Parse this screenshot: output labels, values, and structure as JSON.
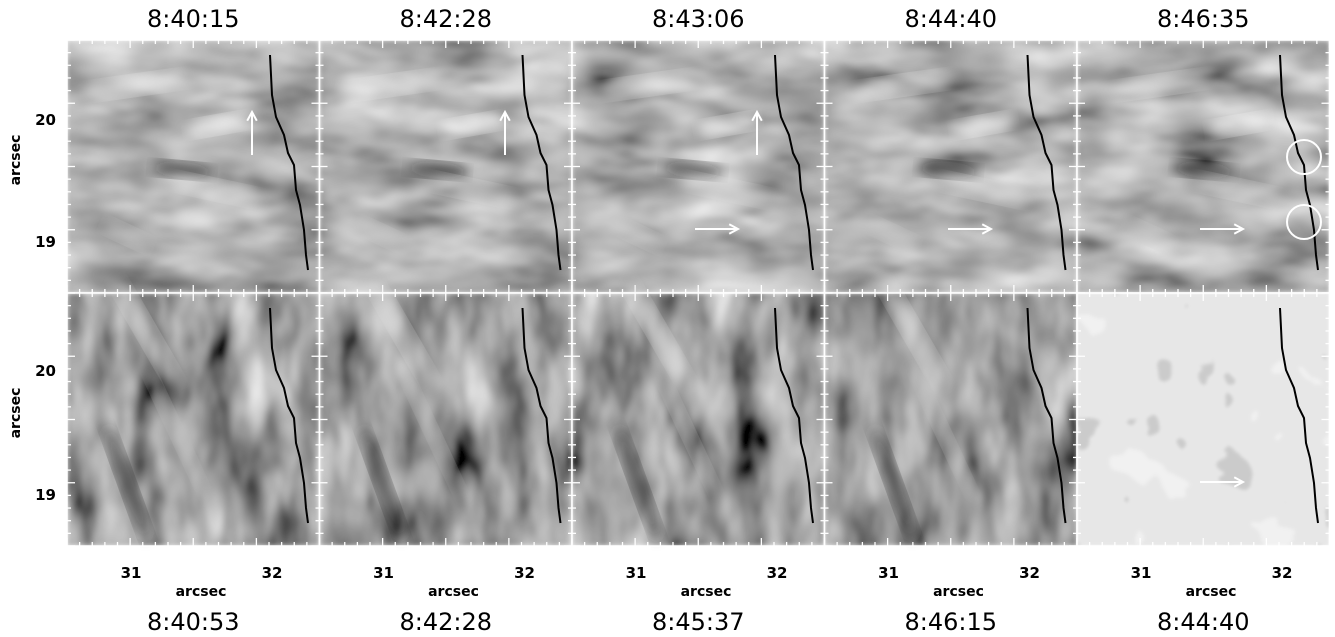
{
  "figure": {
    "top_times": [
      "8:40:15",
      "8:42:28",
      "8:43:06",
      "8:44:40",
      "8:46:35"
    ],
    "bottom_times": [
      "8:40:53",
      "8:42:28",
      "8:45:37",
      "8:46:15",
      "8:44:40"
    ],
    "y_axis": {
      "label": "arcsec",
      "ticks": [
        20,
        19
      ]
    },
    "x_axis": {
      "label": "arcsec",
      "ticks": [
        31,
        32
      ]
    }
  }
}
